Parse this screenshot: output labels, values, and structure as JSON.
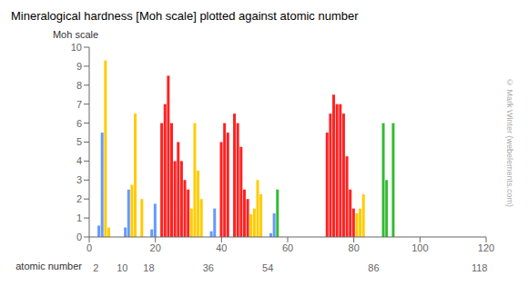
{
  "chart_data": {
    "type": "bar",
    "title": "Mineralogical hardness [Moh scale] plotted against atomic number",
    "xlabel": "atomic number",
    "ylabel": "Moh scale",
    "x": [
      3,
      4,
      5,
      6,
      11,
      12,
      13,
      14,
      16,
      19,
      20,
      22,
      23,
      24,
      25,
      26,
      27,
      28,
      29,
      30,
      31,
      32,
      33,
      34,
      37,
      38,
      40,
      41,
      42,
      44,
      45,
      46,
      47,
      48,
      49,
      50,
      51,
      52,
      55,
      56,
      57,
      72,
      73,
      74,
      75,
      76,
      77,
      78,
      79,
      80,
      81,
      82,
      83,
      89,
      90,
      92
    ],
    "values": [
      0.6,
      5.5,
      9.3,
      0.5,
      0.5,
      2.5,
      2.75,
      6.5,
      2.0,
      0.4,
      1.75,
      6.0,
      7.0,
      8.5,
      6.0,
      4.0,
      5.0,
      4.0,
      3.0,
      2.5,
      1.5,
      6.0,
      3.5,
      2.0,
      0.3,
      1.5,
      5.0,
      6.0,
      5.5,
      6.5,
      6.0,
      4.75,
      2.5,
      2.0,
      1.2,
      1.5,
      3.0,
      2.25,
      0.2,
      1.25,
      2.5,
      5.5,
      6.5,
      7.5,
      7.0,
      7.0,
      6.5,
      4.25,
      2.5,
      1.5,
      1.25,
      1.5,
      2.25,
      6.0,
      3.0,
      6.0
    ],
    "colors": [
      "#6699ff",
      "#6699ff",
      "#ffcc00",
      "#ffcc00",
      "#6699ff",
      "#6699ff",
      "#ffcc00",
      "#ffcc00",
      "#ffcc00",
      "#6699ff",
      "#6699ff",
      "#ff2222",
      "#ff2222",
      "#ff2222",
      "#ff2222",
      "#ff2222",
      "#ff2222",
      "#ff2222",
      "#ff2222",
      "#ff2222",
      "#ffcc00",
      "#ffcc00",
      "#ffcc00",
      "#ffcc00",
      "#6699ff",
      "#6699ff",
      "#ff2222",
      "#ff2222",
      "#ff2222",
      "#ff2222",
      "#ff2222",
      "#ff2222",
      "#ff2222",
      "#ff2222",
      "#ffcc00",
      "#ffcc00",
      "#ffcc00",
      "#ffcc00",
      "#6699ff",
      "#6699ff",
      "#33bb33",
      "#ff2222",
      "#ff2222",
      "#ff2222",
      "#ff2222",
      "#ff2222",
      "#ff2222",
      "#ff2222",
      "#ff2222",
      "#ff2222",
      "#ffcc00",
      "#ffcc00",
      "#ffcc00",
      "#33bb33",
      "#33bb33",
      "#33bb33"
    ],
    "xlim": [
      0,
      120
    ],
    "xticks": [
      0,
      20,
      40,
      60,
      80,
      100,
      120
    ],
    "x2ticks": [
      2,
      10,
      18,
      36,
      54,
      86,
      118
    ],
    "ylim": [
      0,
      10
    ],
    "yticks": [
      0,
      1,
      2,
      3,
      4,
      5,
      6,
      7,
      8,
      9,
      10
    ],
    "grid": false,
    "annotations": [
      "© Mark Winter (webelements.com)"
    ]
  }
}
